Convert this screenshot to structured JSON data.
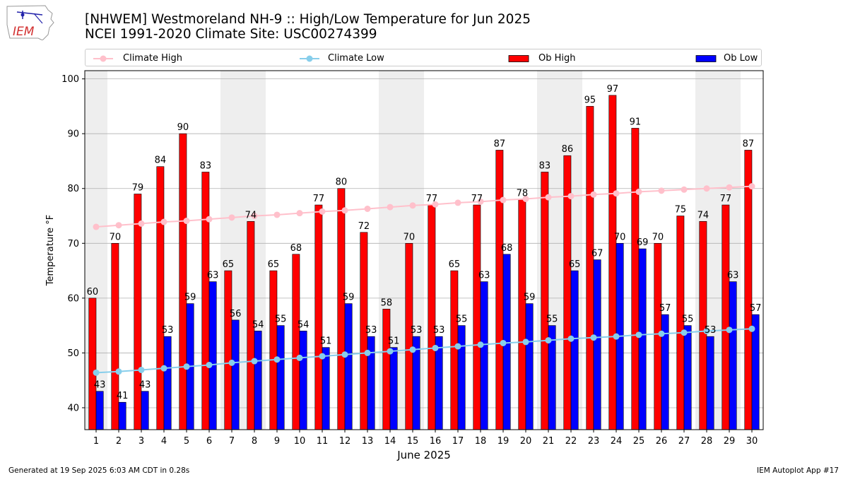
{
  "header": {
    "title_line1": "[NHWEM] Westmoreland NH-9 :: High/Low Temperature for Jun 2025",
    "title_line2": "NCEI 1991-2020 Climate Site: USC00274399"
  },
  "logo": {
    "text": "IEM"
  },
  "footer": {
    "left": "Generated at 19 Sep 2025 6:03 AM CDT in 0.28s",
    "right": "IEM Autoplot App #17"
  },
  "colors": {
    "ob_high": "#ff0000",
    "ob_low": "#0000ff",
    "climate_high": "#ffc0cb",
    "climate_low": "#87ceeb",
    "weekend_shade": "#eeeeee",
    "grid": "#b0b0b0"
  },
  "chart_data": {
    "type": "bar",
    "xlabel": "June 2025",
    "ylabel": "Temperature °F",
    "ylim": [
      36,
      101.5
    ],
    "yticks": [
      40,
      50,
      60,
      70,
      80,
      90,
      100
    ],
    "grid": "horizontal",
    "legend_placement": "top, outside plot",
    "weekend_shaded_days": [
      1,
      7,
      8,
      14,
      15,
      21,
      22,
      28,
      29
    ],
    "categories": [
      "1",
      "2",
      "3",
      "4",
      "5",
      "6",
      "7",
      "8",
      "9",
      "10",
      "11",
      "12",
      "13",
      "14",
      "15",
      "16",
      "17",
      "18",
      "19",
      "20",
      "21",
      "22",
      "23",
      "24",
      "25",
      "26",
      "27",
      "28",
      "29",
      "30"
    ],
    "series": [
      {
        "name": "Ob High",
        "kind": "bar",
        "values": [
          60,
          70,
          79,
          84,
          90,
          83,
          65,
          74,
          65,
          68,
          77,
          80,
          72,
          58,
          70,
          77,
          65,
          77,
          87,
          78,
          83,
          86,
          95,
          97,
          91,
          70,
          75,
          74,
          77,
          87
        ]
      },
      {
        "name": "Ob Low",
        "kind": "bar",
        "values": [
          43,
          41,
          43,
          53,
          59,
          63,
          56,
          54,
          55,
          54,
          51,
          59,
          53,
          51,
          53,
          53,
          55,
          63,
          68,
          59,
          55,
          65,
          67,
          70,
          69,
          57,
          55,
          53,
          63,
          57
        ]
      },
      {
        "name": "Climate High",
        "kind": "line",
        "values": [
          73.0,
          73.3,
          73.6,
          73.9,
          74.1,
          74.4,
          74.7,
          75.0,
          75.2,
          75.5,
          75.8,
          76.0,
          76.3,
          76.6,
          76.9,
          77.1,
          77.4,
          77.6,
          77.9,
          78.1,
          78.4,
          78.6,
          78.9,
          79.1,
          79.4,
          79.6,
          79.8,
          80.0,
          80.2,
          80.4
        ]
      },
      {
        "name": "Climate Low",
        "kind": "line",
        "values": [
          46.4,
          46.6,
          46.9,
          47.2,
          47.5,
          47.8,
          48.2,
          48.5,
          48.8,
          49.1,
          49.4,
          49.7,
          50.0,
          50.3,
          50.6,
          50.9,
          51.2,
          51.5,
          51.8,
          52.0,
          52.3,
          52.6,
          52.8,
          53.0,
          53.3,
          53.5,
          53.7,
          54.0,
          54.2,
          54.4
        ]
      }
    ]
  }
}
